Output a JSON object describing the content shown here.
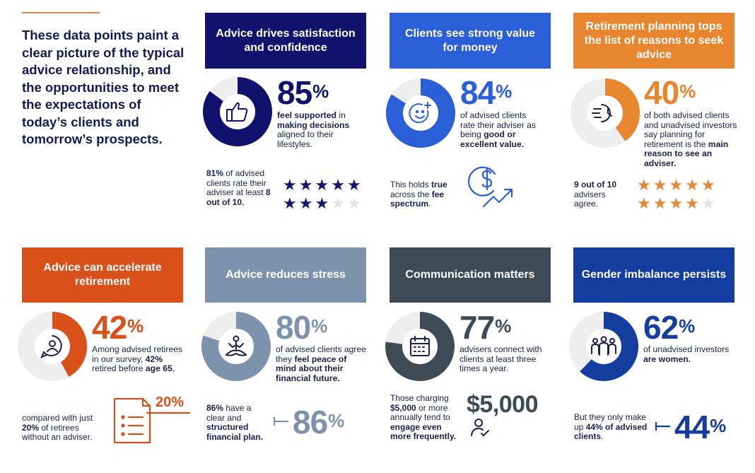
{
  "intro": {
    "text": "These data points paint a clear picture of the typical advice relationship, and the opportunities to meet the expectations of today’s clients and tomorrow’s prospects."
  },
  "colors": {
    "navy": "#10126b",
    "blue": "#2b5fd8",
    "orange": "#e8852f",
    "red_orange": "#d9501b",
    "slate": "#7d93ad",
    "dark_slate": "#3c4b55",
    "royal": "#133d9f",
    "ring_bg": "#eeeeee"
  },
  "panels": {
    "satisfaction": {
      "title": "Advice drives satisfaction and confidence",
      "value": "85",
      "fraction": 0.85,
      "icon": "thumbs-up-icon",
      "desc_bold1": "feel supported",
      "desc_plain1": " in ",
      "desc_bold2": "making decisions",
      "desc_plain2": " aligned to their lifestyles.",
      "note_bold1": "81%",
      "note_plain1": " of advised clients rate their adviser at least ",
      "note_bold2": "8 out of 10.",
      "stars_filled": 8,
      "stars_total": 10
    },
    "value": {
      "title": "Clients see strong value for money",
      "value": "84",
      "fraction": 0.84,
      "icon": "smiley-plus-icon",
      "desc_plain1": "of advised clients rate their adviser as being ",
      "desc_bold1": "good or excellent value.",
      "note_plain1": "This holds ",
      "note_bold1": "true",
      "note_plain2": " across the ",
      "note_bold2": "fee spectrum",
      "note_plain3": ".",
      "note_icon": "dollar-growth-icon"
    },
    "planning": {
      "title": "Retirement planning tops the list of reasons to seek advice",
      "value": "40",
      "fraction": 0.4,
      "icon": "clock-speed-icon",
      "desc_plain1": "of both advised clients and unadvised investors say planning for retirement is the ",
      "desc_bold1": "main reason to see an adviser.",
      "note_bold1": "9 out of 10",
      "note_plain1": " advisers agree.",
      "stars_filled": 9,
      "stars_total": 10
    },
    "accelerate": {
      "title": "Advice can accelerate retirement",
      "value": "42",
      "fraction": 0.42,
      "icon": "person-chat-icon",
      "desc_plain1": "Among advised retirees in our survey, ",
      "desc_bold1": "42%",
      "desc_plain2": " retired before ",
      "desc_bold2": "age 65",
      "desc_plain3": ",",
      "note_plain1": "compared with just ",
      "note_bold1": "20%",
      "note_plain2": " of retirees without an adviser.",
      "doc_value": "20%",
      "doc_icon": "document-list-icon"
    },
    "stress": {
      "title": "Advice reduces stress",
      "value": "80",
      "fraction": 0.8,
      "icon": "meditation-icon",
      "desc_plain1": "of advised clients agree they ",
      "desc_bold1": "feel peace of mind about their financial future.",
      "note_bold1": "86%",
      "note_plain1": " have a clear and ",
      "note_bold2": "structured financial plan.",
      "side_value": "86"
    },
    "communication": {
      "title": "Communication matters",
      "value": "77",
      "fraction": 0.77,
      "icon": "calendar-icon",
      "desc_plain1": "advisers connect with clients at least three times a year.",
      "note_plain1": "Those charging ",
      "note_bold1": "$5,000",
      "note_plain2": " or more annually tend to ",
      "note_bold2": "engage even more frequently.",
      "side_value": "$5,000",
      "side_icon": "person-check-icon"
    },
    "gender": {
      "title": "Gender imbalance persists",
      "value": "62",
      "fraction": 0.62,
      "icon": "group-people-icon",
      "desc_plain1": "of unadvised investors ",
      "desc_bold1": "are women.",
      "note_plain1": "But they only make up ",
      "note_bold1": "44% of advised clients",
      "note_plain2": ".",
      "side_value": "44"
    }
  },
  "percent_sign": "%"
}
